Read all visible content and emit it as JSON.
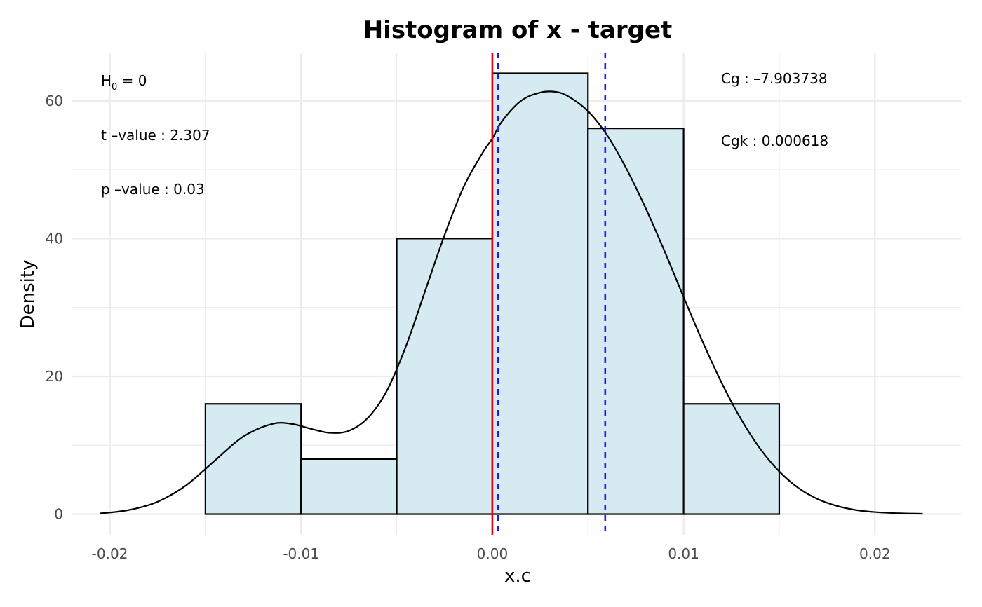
{
  "chart_data": {
    "type": "bar",
    "title": "Histogram of x - target",
    "xlabel": "x.c",
    "ylabel": "Density",
    "xlim": [
      -0.022,
      0.0245
    ],
    "ylim": [
      -3.0,
      67.0
    ],
    "x_ticks": [
      -0.02,
      -0.01,
      0.0,
      0.01,
      0.02
    ],
    "x_tick_labels": [
      "-0.02",
      "-0.01",
      "0.00",
      "0.01",
      "0.02"
    ],
    "y_ticks": [
      0,
      20,
      40,
      60
    ],
    "y_tick_labels": [
      "0",
      "20",
      "40",
      "60"
    ],
    "grid": true,
    "bins": [
      {
        "start": -0.015,
        "end": -0.01,
        "density": 16
      },
      {
        "start": -0.01,
        "end": -0.005,
        "density": 8
      },
      {
        "start": -0.005,
        "end": 0.0,
        "density": 40
      },
      {
        "start": 0.0,
        "end": 0.005,
        "density": 64
      },
      {
        "start": 0.005,
        "end": 0.01,
        "density": 56
      },
      {
        "start": 0.01,
        "end": 0.015,
        "density": 16
      }
    ],
    "bar_fill": "#d6eaf1",
    "bar_stroke": "#000000",
    "density_curve": {
      "x": [
        -0.0205,
        -0.019,
        -0.0175,
        -0.016,
        -0.0145,
        -0.013,
        -0.0115,
        -0.0105,
        -0.0095,
        -0.0085,
        -0.0075,
        -0.0065,
        -0.0055,
        -0.0045,
        -0.0035,
        -0.0025,
        -0.0015,
        -0.0005,
        0.0,
        0.0005,
        0.0015,
        0.0025,
        0.0033,
        0.004,
        0.005,
        0.006,
        0.007,
        0.008,
        0.009,
        0.01,
        0.011,
        0.012,
        0.013,
        0.014,
        0.015,
        0.016,
        0.017,
        0.018,
        0.019,
        0.02,
        0.021,
        0.0225
      ],
      "y": [
        0.1,
        0.6,
        1.8,
        4.2,
        7.8,
        11.3,
        13.1,
        13.1,
        12.4,
        11.8,
        12.1,
        14.0,
        18.0,
        24.5,
        32.5,
        40.5,
        47.5,
        52.5,
        54.5,
        57.0,
        60.0,
        61.2,
        61.3,
        60.6,
        58.5,
        55.0,
        50.2,
        44.5,
        38.2,
        31.5,
        25.0,
        19.0,
        13.8,
        9.5,
        6.2,
        3.8,
        2.2,
        1.2,
        0.6,
        0.3,
        0.15,
        0.05
      ],
      "color": "#000000"
    },
    "reference_lines": [
      {
        "x": 0.0,
        "color": "#e8000b",
        "style": "solid"
      },
      {
        "x": 0.0003,
        "color": "#1a1aff",
        "style": "dashed"
      },
      {
        "x": 0.0059,
        "color": "#1a1aff",
        "style": "dashed"
      }
    ]
  },
  "annotations": {
    "h0_main": "H",
    "h0_sub": "0",
    "h0_rest": " = 0",
    "t_value": "t –value : 2.307",
    "p_value": "p –value : 0.03",
    "cg": "Cg : –7.903738",
    "cgk": "Cgk : 0.000618"
  },
  "colors": {
    "grid": "#ebebeb",
    "background": "#ffffff"
  }
}
